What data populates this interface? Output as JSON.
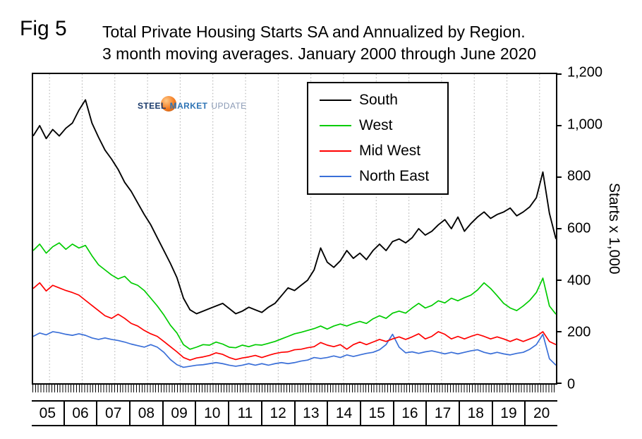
{
  "header": {
    "fig_label": "Fig 5",
    "title_line1": "Total Private Housing Starts SA and Annualized by Region.",
    "title_line2": "3 month moving averages. January 2000 through June 2020"
  },
  "logo": {
    "word1": "STEEL",
    "word2": "MARKET",
    "word3": "UPDATE",
    "ball_color": "#f47b20"
  },
  "chart_data": {
    "type": "line",
    "title": "Total Private Housing Starts SA and Annualized by Region. 3 month moving averages. January 2000 through June 2020",
    "xlabel": "",
    "ylabel": "Starts x 1,000",
    "ylim": [
      0,
      1200
    ],
    "xlim": [
      2004.5,
      2020.5
    ],
    "grid": "vertical-dotted-yearly",
    "legend_position": "top-center-inside",
    "x_start": 2004.5,
    "x_step": 0.2,
    "x_gridlines": [
      2005,
      2006,
      2007,
      2008,
      2009,
      2010,
      2011,
      2012,
      2013,
      2014,
      2015,
      2016,
      2017,
      2018,
      2019,
      2020
    ],
    "x_tick_labels": [
      "05",
      "06",
      "07",
      "08",
      "09",
      "10",
      "11",
      "12",
      "13",
      "14",
      "15",
      "16",
      "17",
      "18",
      "19",
      "20"
    ],
    "y_ticks": [
      {
        "value": 1200,
        "label": "1,200"
      },
      {
        "value": 1000,
        "label": "1,000"
      },
      {
        "value": 800,
        "label": "800"
      },
      {
        "value": 600,
        "label": "600"
      },
      {
        "value": 400,
        "label": "400"
      },
      {
        "value": 200,
        "label": "200"
      },
      {
        "value": 0,
        "label": "0"
      }
    ],
    "series": [
      {
        "name": "South",
        "color": "#000000",
        "values": [
          960,
          1000,
          950,
          985,
          960,
          990,
          1010,
          1060,
          1100,
          1010,
          955,
          905,
          870,
          830,
          780,
          745,
          700,
          655,
          615,
          565,
          515,
          465,
          410,
          330,
          285,
          270,
          280,
          290,
          300,
          310,
          290,
          270,
          280,
          295,
          285,
          275,
          295,
          310,
          340,
          370,
          360,
          380,
          400,
          440,
          525,
          470,
          450,
          475,
          515,
          485,
          505,
          480,
          515,
          540,
          515,
          550,
          560,
          545,
          565,
          600,
          575,
          590,
          615,
          635,
          600,
          645,
          590,
          620,
          645,
          665,
          640,
          655,
          665,
          680,
          650,
          665,
          685,
          720,
          820,
          660,
          560
        ]
      },
      {
        "name": "West",
        "color": "#00cc00",
        "values": [
          515,
          540,
          505,
          530,
          545,
          520,
          540,
          525,
          535,
          495,
          460,
          440,
          420,
          405,
          415,
          390,
          380,
          360,
          330,
          300,
          265,
          225,
          195,
          150,
          132,
          140,
          150,
          148,
          160,
          152,
          140,
          138,
          148,
          142,
          150,
          148,
          155,
          162,
          172,
          182,
          192,
          198,
          205,
          212,
          222,
          210,
          222,
          230,
          222,
          232,
          240,
          232,
          250,
          262,
          252,
          272,
          280,
          272,
          292,
          310,
          292,
          302,
          320,
          312,
          330,
          320,
          332,
          342,
          362,
          390,
          368,
          340,
          310,
          292,
          282,
          300,
          322,
          352,
          408,
          300,
          268
        ]
      },
      {
        "name": "Mid West",
        "color": "#ff0000",
        "values": [
          368,
          390,
          358,
          380,
          370,
          360,
          352,
          342,
          322,
          302,
          282,
          262,
          252,
          268,
          252,
          232,
          222,
          205,
          192,
          182,
          162,
          142,
          122,
          100,
          90,
          98,
          102,
          108,
          118,
          112,
          100,
          92,
          98,
          102,
          108,
          100,
          108,
          115,
          120,
          122,
          130,
          132,
          138,
          142,
          158,
          148,
          142,
          150,
          132,
          150,
          160,
          150,
          160,
          170,
          162,
          172,
          180,
          170,
          180,
          192,
          172,
          182,
          200,
          190,
          172,
          182,
          172,
          182,
          190,
          182,
          172,
          180,
          172,
          162,
          172,
          162,
          172,
          182,
          200,
          162,
          150
        ]
      },
      {
        "name": "North East",
        "color": "#3a6fd8",
        "values": [
          182,
          195,
          188,
          200,
          196,
          190,
          186,
          192,
          186,
          176,
          170,
          176,
          170,
          166,
          160,
          152,
          146,
          140,
          150,
          140,
          120,
          92,
          72,
          62,
          66,
          70,
          72,
          76,
          80,
          76,
          70,
          66,
          70,
          76,
          70,
          76,
          70,
          76,
          80,
          76,
          80,
          86,
          90,
          100,
          96,
          100,
          106,
          100,
          110,
          104,
          110,
          116,
          120,
          130,
          150,
          190,
          140,
          118,
          122,
          116,
          122,
          126,
          120,
          114,
          120,
          114,
          120,
          126,
          130,
          120,
          114,
          120,
          114,
          110,
          116,
          120,
          132,
          150,
          190,
          95,
          70
        ]
      }
    ]
  }
}
